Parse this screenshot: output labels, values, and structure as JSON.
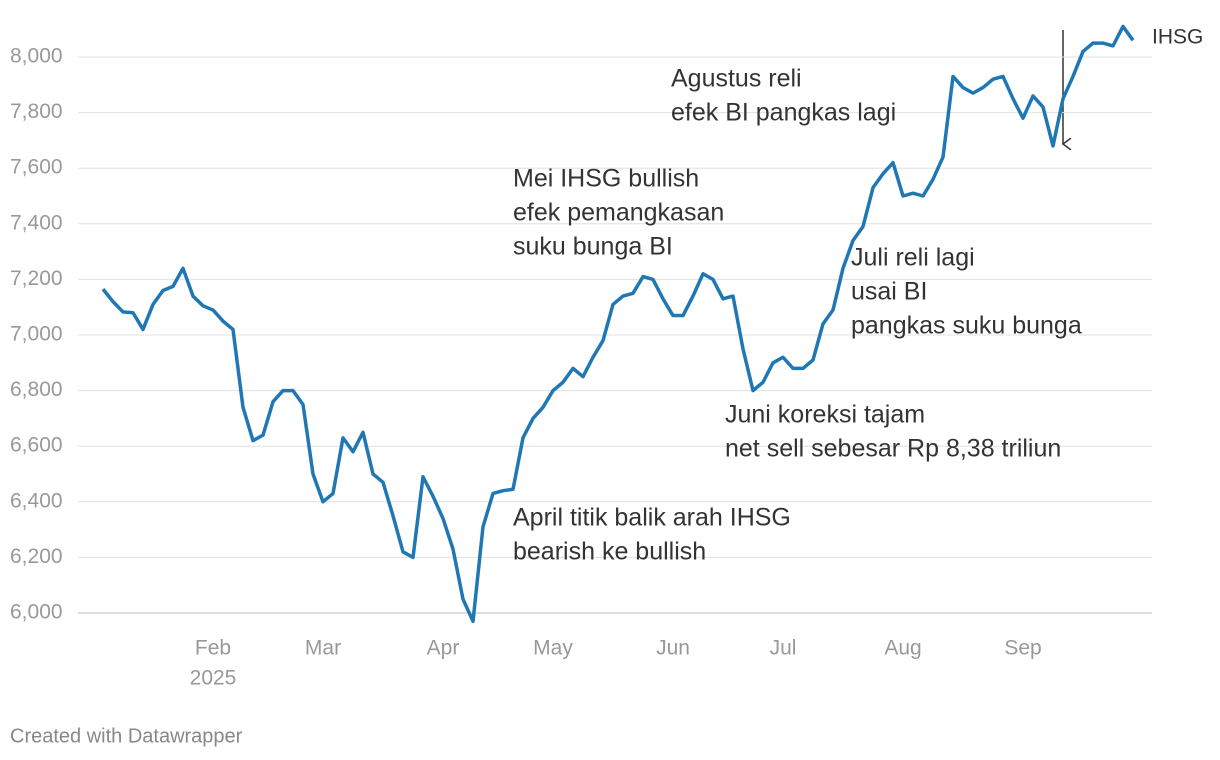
{
  "chart_data": {
    "type": "line",
    "categories": [
      null,
      null,
      null,
      null,
      null,
      null,
      null,
      null,
      null,
      null,
      null,
      "Feb",
      null,
      null,
      null,
      null,
      null,
      null,
      null,
      null,
      null,
      null,
      "Mar",
      null,
      null,
      null,
      null,
      null,
      null,
      null,
      null,
      null,
      null,
      null,
      "Apr",
      null,
      null,
      null,
      null,
      null,
      null,
      null,
      null,
      null,
      null,
      "May",
      null,
      null,
      null,
      null,
      null,
      null,
      null,
      null,
      null,
      null,
      null,
      "Jun",
      null,
      null,
      null,
      null,
      null,
      null,
      null,
      null,
      null,
      null,
      "Jul",
      null,
      null,
      null,
      null,
      null,
      null,
      null,
      null,
      null,
      null,
      null,
      "Aug",
      null,
      null,
      null,
      null,
      null,
      null,
      null,
      null,
      null,
      null,
      null,
      "Sep",
      null,
      null,
      null,
      null,
      null,
      null,
      null,
      null,
      null,
      null,
      null
    ],
    "year_label": "2025",
    "series": [
      {
        "name": "IHSG",
        "color": "#1f77b4",
        "values": [
          7165,
          7120,
          7083,
          7080,
          7020,
          7110,
          7160,
          7175,
          7240,
          7140,
          7105,
          7090,
          7050,
          7020,
          6740,
          6620,
          6640,
          6760,
          6800,
          6800,
          6750,
          6500,
          6400,
          6430,
          6630,
          6580,
          6650,
          6500,
          6470,
          6350,
          6220,
          6200,
          6490,
          6420,
          6340,
          6230,
          6050,
          5970,
          6310,
          6430,
          6440,
          6445,
          6630,
          6700,
          6740,
          6800,
          6830,
          6880,
          6850,
          6920,
          6980,
          7110,
          7140,
          7150,
          7210,
          7200,
          7130,
          7070,
          7070,
          7140,
          7220,
          7200,
          7130,
          7140,
          6950,
          6800,
          6830,
          6900,
          6920,
          6880,
          6880,
          6910,
          7040,
          7090,
          7240,
          7340,
          7390,
          7530,
          7580,
          7620,
          7500,
          7510,
          7500,
          7560,
          7640,
          7930,
          7890,
          7870,
          7890,
          7920,
          7930,
          7850,
          7780,
          7860,
          7820,
          7680,
          7850,
          7930,
          8020,
          8050,
          8050,
          8040,
          8110,
          8060
        ]
      }
    ],
    "ylim": [
      6000,
      8000
    ],
    "yticks": [
      {
        "value": 6000,
        "label": "6,000"
      },
      {
        "value": 6200,
        "label": "6,200"
      },
      {
        "value": 6400,
        "label": "6,400"
      },
      {
        "value": 6600,
        "label": "6,600"
      },
      {
        "value": 6800,
        "label": "6,800"
      },
      {
        "value": 7000,
        "label": "7,000"
      },
      {
        "value": 7200,
        "label": "7,200"
      },
      {
        "value": 7400,
        "label": "7,400"
      },
      {
        "value": 7600,
        "label": "7,600"
      },
      {
        "value": 7800,
        "label": "7,800"
      },
      {
        "value": 8000,
        "label": "8,000"
      }
    ],
    "grid": true,
    "annotations": [
      {
        "lines": [
          "Agustus reli",
          "efek BI pangkas lagi"
        ]
      },
      {
        "lines": [
          "Mei IHSG bullish",
          "efek pemangkasan",
          "suku bunga BI"
        ]
      },
      {
        "lines": [
          "Juli reli lagi",
          "usai BI",
          "pangkas suku bunga"
        ]
      },
      {
        "lines": [
          "Juni koreksi tajam",
          "net sell sebesar Rp 8,38 triliun"
        ]
      },
      {
        "lines": [
          "April titik balik arah IHSG",
          "bearish ke bullish"
        ]
      }
    ],
    "footer": "Created with Datawrapper"
  }
}
